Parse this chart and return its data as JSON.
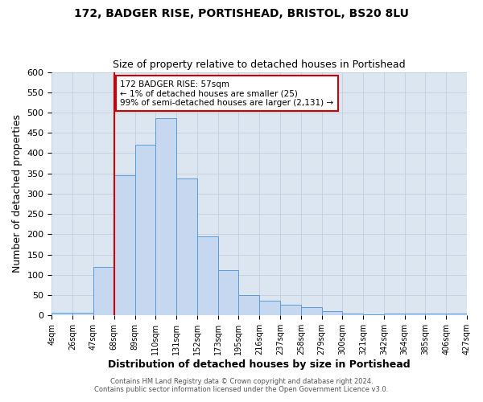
{
  "title": "172, BADGER RISE, PORTISHEAD, BRISTOL, BS20 8LU",
  "subtitle": "Size of property relative to detached houses in Portishead",
  "xlabel": "Distribution of detached houses by size in Portishead",
  "ylabel": "Number of detached properties",
  "bin_labels": [
    "4sqm",
    "26sqm",
    "47sqm",
    "68sqm",
    "89sqm",
    "110sqm",
    "131sqm",
    "152sqm",
    "173sqm",
    "195sqm",
    "216sqm",
    "237sqm",
    "258sqm",
    "279sqm",
    "300sqm",
    "321sqm",
    "342sqm",
    "364sqm",
    "385sqm",
    "406sqm",
    "427sqm"
  ],
  "bar_heights": [
    7,
    7,
    120,
    345,
    420,
    487,
    338,
    194,
    112,
    50,
    36,
    27,
    21,
    10,
    5,
    2,
    5,
    5,
    5,
    4
  ],
  "bar_color": "#c5d8f0",
  "bar_edge_color": "#5b9bd5",
  "grid_color": "#c0c8d8",
  "background_color": "#dce6f1",
  "vline_x": 3,
  "vline_color": "#cc0000",
  "annotation_text": "172 BADGER RISE: 57sqm\n← 1% of detached houses are smaller (25)\n99% of semi-detached houses are larger (2,131) →",
  "annotation_box_color": "#ffffff",
  "annotation_box_edge": "#cc0000",
  "ylim": [
    0,
    600
  ],
  "yticks": [
    0,
    50,
    100,
    150,
    200,
    250,
    300,
    350,
    400,
    450,
    500,
    550,
    600
  ],
  "footer1": "Contains HM Land Registry data © Crown copyright and database right 2024.",
  "footer2": "Contains public sector information licensed under the Open Government Licence v3.0."
}
